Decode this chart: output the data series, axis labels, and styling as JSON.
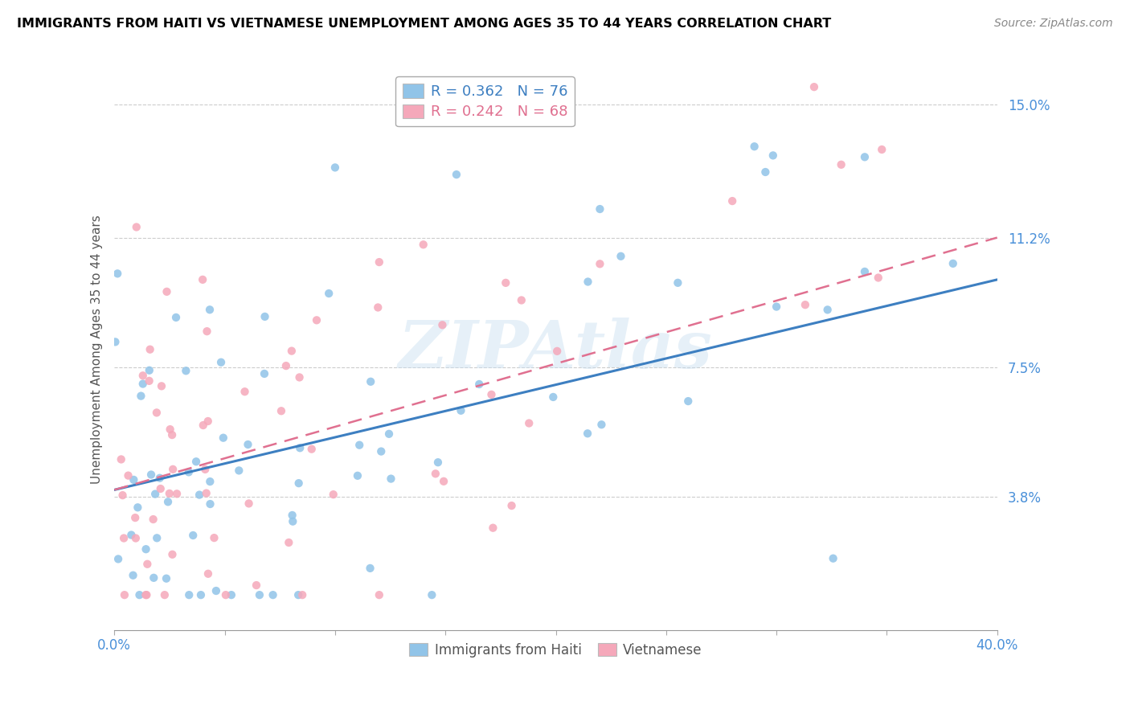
{
  "title": "IMMIGRANTS FROM HAITI VS VIETNAMESE UNEMPLOYMENT AMONG AGES 35 TO 44 YEARS CORRELATION CHART",
  "source": "Source: ZipAtlas.com",
  "xlabel": "",
  "ylabel": "Unemployment Among Ages 35 to 44 years",
  "xlim": [
    0.0,
    0.4
  ],
  "ylim": [
    0.0,
    0.16
  ],
  "yticks": [
    0.038,
    0.075,
    0.112,
    0.15
  ],
  "ytick_labels": [
    "3.8%",
    "7.5%",
    "11.2%",
    "15.0%"
  ],
  "xticks": [
    0.0,
    0.05,
    0.1,
    0.15,
    0.2,
    0.25,
    0.3,
    0.35,
    0.4
  ],
  "xtick_labels": [
    "0.0%",
    "",
    "",
    "",
    "",
    "",
    "",
    "",
    "40.0%"
  ],
  "haiti_color": "#91c4e8",
  "viet_color": "#f5a8ba",
  "haiti_line_color": "#3d7fc1",
  "viet_line_color": "#e07090",
  "haiti_R": 0.362,
  "haiti_N": 76,
  "viet_R": 0.242,
  "viet_N": 68,
  "legend_label_haiti": "Immigrants from Haiti",
  "legend_label_viet": "Vietnamese",
  "watermark": "ZIPAtlas",
  "axis_text_color": "#4a90d9",
  "title_fontsize": 11.5,
  "tick_fontsize": 12,
  "ylabel_fontsize": 11,
  "haiti_line_start_y": 0.04,
  "haiti_line_end_y": 0.1,
  "viet_line_start_y": 0.04,
  "viet_line_end_y": 0.112
}
